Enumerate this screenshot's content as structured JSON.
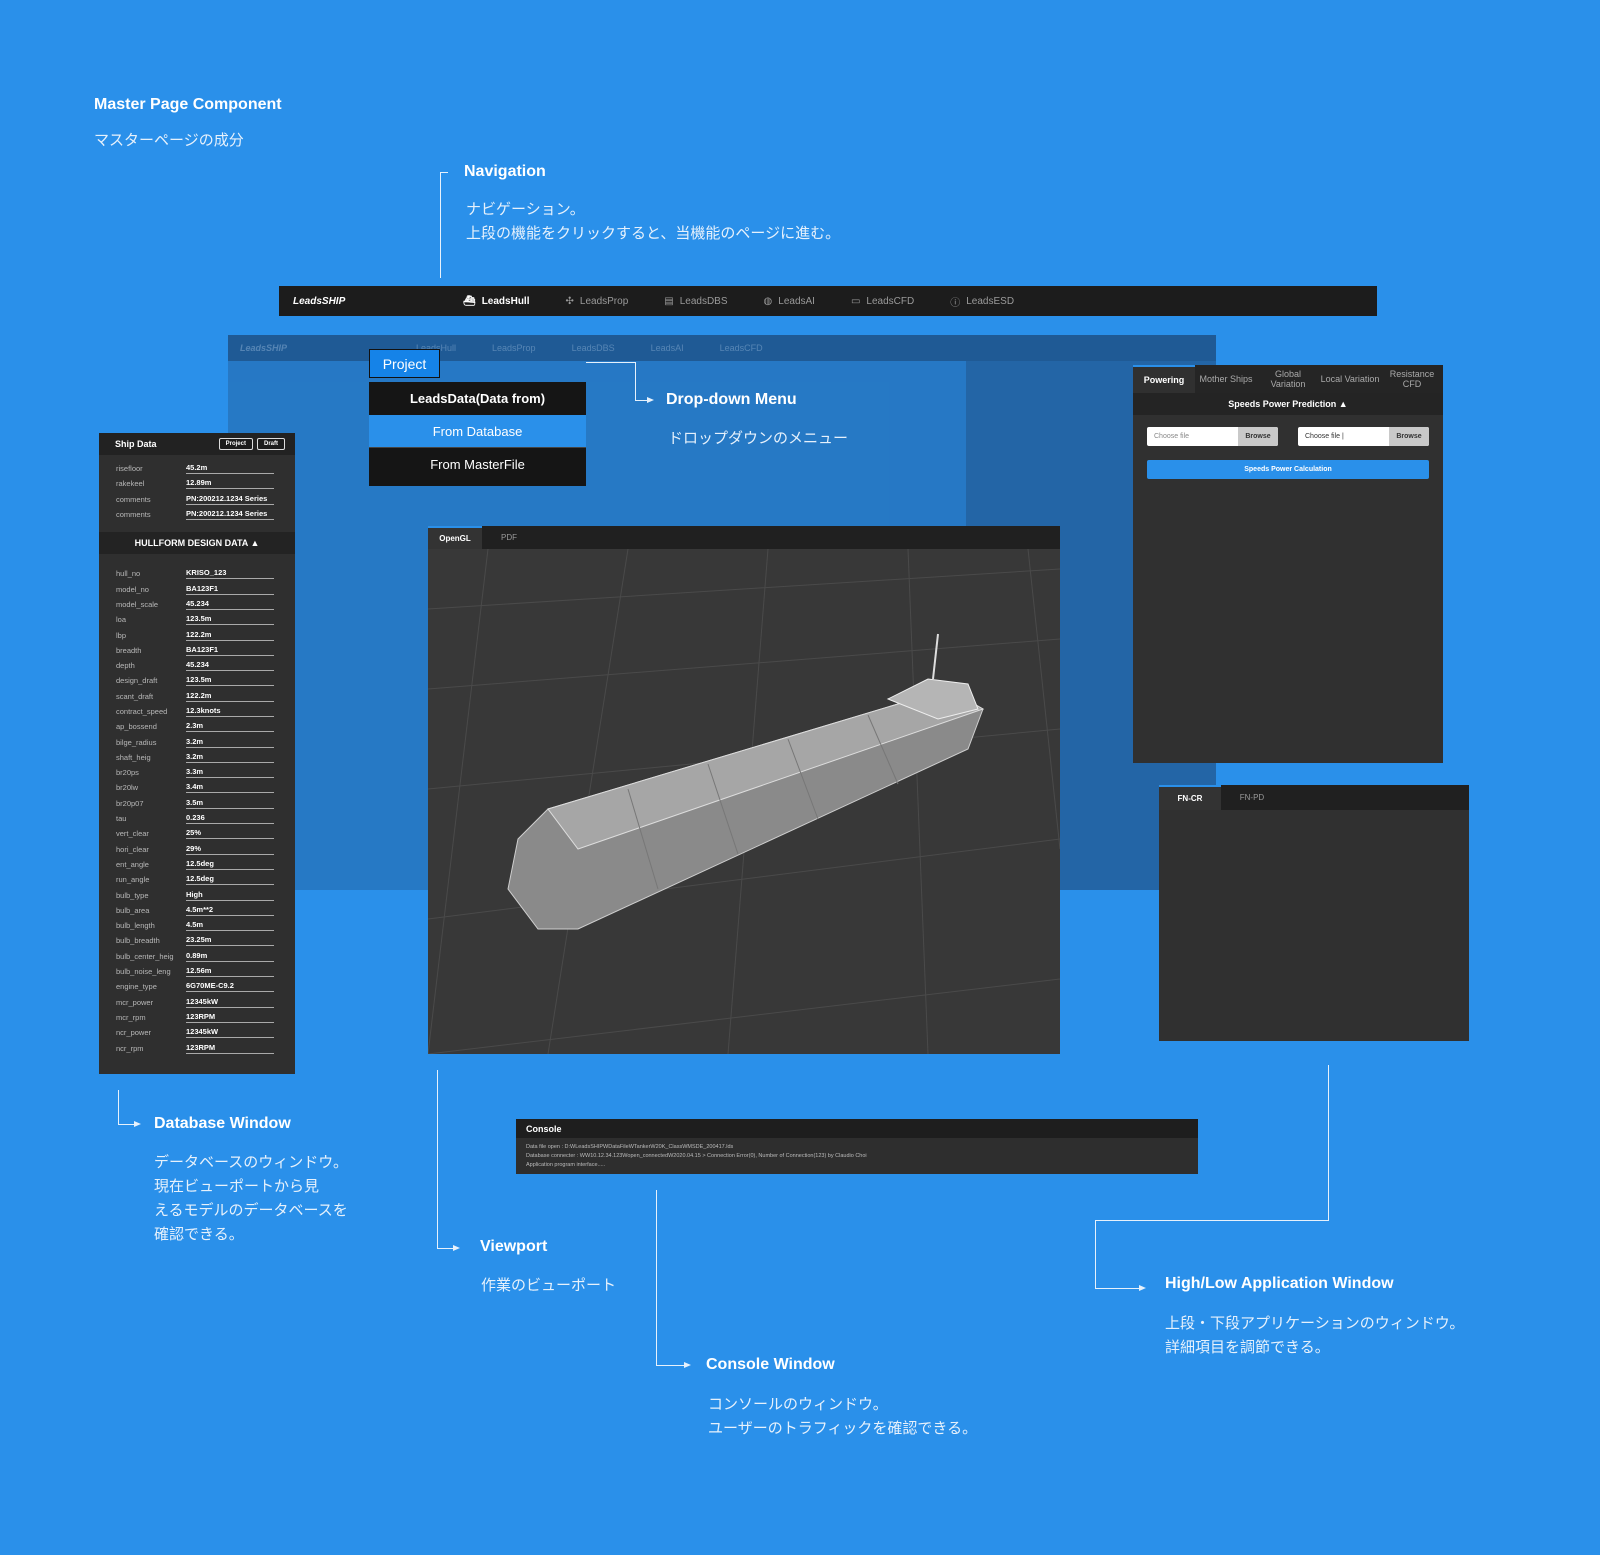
{
  "page": {
    "title": "Master Page Component",
    "subtitle": "マスターページの成分"
  },
  "annotations": {
    "navigation": {
      "title": "Navigation",
      "desc": "ナビゲーション。\n上段の機能をクリックすると、当機能のページに進む。"
    },
    "dropdown": {
      "title": "Drop-down Menu",
      "desc": "ドロップダウンのメニュー"
    },
    "database": {
      "title": "Database Window",
      "desc": "データベースのウィンドウ。\n現在ビューポートから見\nえるモデルのデータベースを\n確認できる。"
    },
    "viewport": {
      "title": "Viewport",
      "desc": "作業のビューポート"
    },
    "console": {
      "title": "Console Window",
      "desc": "コンソールのウィンドウ。\nユーザーのトラフィックを確認できる。"
    },
    "highlow": {
      "title": "High/Low Application Window",
      "desc": "上段・下段アプリケーションのウィンドウ。\n詳細項目を調節できる。"
    }
  },
  "nav": {
    "logo": "LeadsSHIP",
    "items": [
      {
        "label": "LeadsHull",
        "icon": "ship-icon",
        "active": true
      },
      {
        "label": "LeadsProp",
        "icon": "propeller-icon"
      },
      {
        "label": "LeadsDBS",
        "icon": "database-icon"
      },
      {
        "label": "LeadsAI",
        "icon": "ai-icon"
      },
      {
        "label": "LeadsCFD",
        "icon": "cfd-icon"
      },
      {
        "label": "LeadsESD",
        "icon": "energy-icon"
      }
    ]
  },
  "dropdown": {
    "button": "Project",
    "items": [
      "LeadsData(Data from)",
      "From Database",
      "From MasterFile"
    ],
    "selected": "From Database"
  },
  "database": {
    "title": "Ship Data",
    "buttons": [
      "Project",
      "Draft"
    ],
    "ship_rows": [
      [
        "risefloor",
        "45.2m"
      ],
      [
        "rakekeel",
        "12.89m"
      ],
      [
        "comments",
        "PN:200212.1234 Series"
      ],
      [
        "comments",
        "PN:200212.1234 Series"
      ]
    ],
    "section": "HULLFORM DESIGN DATA ▲",
    "rows": [
      [
        "hull_no",
        "KRISO_123"
      ],
      [
        "model_no",
        "BA123F1"
      ],
      [
        "model_scale",
        "45.234"
      ],
      [
        "loa",
        "123.5m"
      ],
      [
        "lbp",
        "122.2m"
      ],
      [
        "breadth",
        "BA123F1"
      ],
      [
        "depth",
        "45.234"
      ],
      [
        "design_draft",
        "123.5m"
      ],
      [
        "scant_draft",
        "122.2m"
      ],
      [
        "contract_speed",
        "12.3knots"
      ],
      [
        "ap_bossend",
        "2.3m"
      ],
      [
        "bilge_radius",
        "3.2m"
      ],
      [
        "shaft_heig",
        "3.2m"
      ],
      [
        "br20ps",
        "3.3m"
      ],
      [
        "br20lw",
        "3.4m"
      ],
      [
        "br20p07",
        "3.5m"
      ],
      [
        "tau",
        "0.236"
      ],
      [
        "vert_clear",
        "25%"
      ],
      [
        "hori_clear",
        "29%"
      ],
      [
        "ent_angle",
        "12.5deg"
      ],
      [
        "run_angle",
        "12.5deg"
      ],
      [
        "bulb_type",
        "High"
      ],
      [
        "bulb_area",
        "4.5m**2"
      ],
      [
        "bulb_length",
        "4.5m"
      ],
      [
        "bulb_breadth",
        "23.25m"
      ],
      [
        "bulb_center_heig",
        "0.89m"
      ],
      [
        "bulb_noise_leng",
        "12.56m"
      ],
      [
        "engine_type",
        "6G70ME-C9.2"
      ],
      [
        "mcr_power",
        "12345kW"
      ],
      [
        "mcr_rpm",
        "123RPM"
      ],
      [
        "ncr_power",
        "12345kW"
      ],
      [
        "ncr_rpm",
        "123RPM"
      ]
    ]
  },
  "viewport": {
    "tabs": [
      "OpenGL",
      "PDF"
    ],
    "active": "OpenGL"
  },
  "right_panel": {
    "tabs": [
      "Powering",
      "Mother Ships",
      "Global Variation",
      "Local Variation",
      "Resistance CFD"
    ],
    "active": "Powering",
    "section": "Speeds Power Prediction ▲",
    "file1": {
      "placeholder": "Choose file",
      "button": "Browse"
    },
    "file2": {
      "value": "Choose file |",
      "button": "Browse"
    },
    "calc_button": "Speeds Power Calculation"
  },
  "fn_panel": {
    "tabs": [
      "FN-CR",
      "FN-PD"
    ],
    "active": "FN-CR"
  },
  "console": {
    "title": "Console",
    "lines": [
      "Data file open : D:WLeadsSHIPWDataFileWTankerW20K_ClassWMSDE_200417.lds",
      "Database connecter : WW10.12.34.123Wopen_connectedW2020.04.15  > Connection Error(0), Number of Connection(123) by Claudio Choi",
      "Application program interface....."
    ]
  },
  "colors": {
    "background": "#2a90ea",
    "accent": "#1583e8",
    "panel": "#2f2f2f",
    "bar": "#1c1c1c"
  }
}
